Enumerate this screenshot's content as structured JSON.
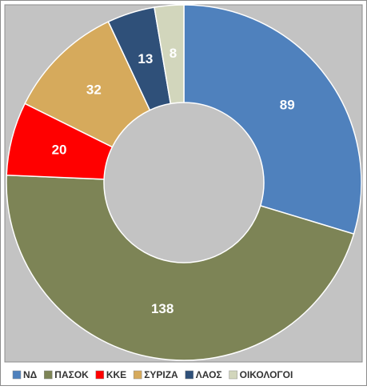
{
  "chart_data": {
    "type": "donut",
    "categories": [
      "ΝΔ",
      "ΠΑΣΟΚ",
      "ΚΚΕ",
      "ΣΥΡΙΖΑ",
      "ΛΑΟΣ",
      "ΟΙΚΟΛΟΓΟΙ"
    ],
    "values": [
      89,
      138,
      20,
      32,
      13,
      8
    ],
    "colors": [
      "#4f81bd",
      "#7d8456",
      "#ff0000",
      "#d6aa5c",
      "#2f5079",
      "#d2d6bc"
    ],
    "legend": "bottom"
  }
}
